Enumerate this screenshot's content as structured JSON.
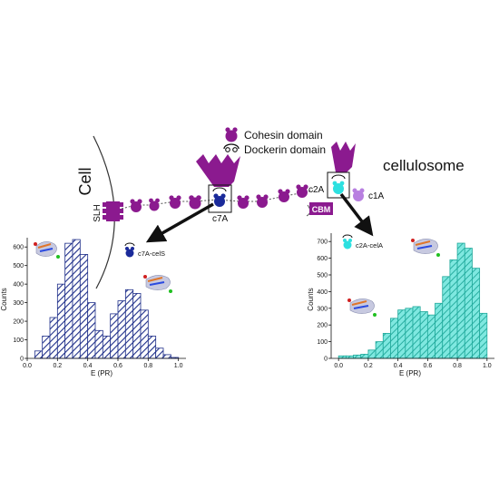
{
  "legend": {
    "cohesin_label": "Cohesin domain",
    "dockerin_label": "Dockerin domain"
  },
  "labels": {
    "cell": "Cell",
    "slh": "SLH",
    "cellulosome": "cellulosome",
    "c7a": "c7A",
    "c2a": "c2A",
    "c1a": "c1A",
    "cbm": "CBM"
  },
  "colors": {
    "scaffold_purple": "#8b1a8f",
    "c1a_lavender": "#b87fe0",
    "c7a_navy": "#1a2a9a",
    "c2a_cyan": "#2de0e0",
    "left_hatch": "#1f2f8a",
    "right_hatch": "#1fa89a",
    "right_fill": "#7fe8e0"
  },
  "icons": {
    "protein_structure": "protein-ribbon-icon",
    "cohesin": "cohesin-icon",
    "dockerin": "dockerin-icon",
    "arrow": "black-arrow-icon"
  },
  "chart_data": [
    {
      "type": "bar",
      "name_label": "c7A-celS",
      "ylabel": "Counts",
      "xlabel": "E (PR)",
      "x_ticks": [
        "0.0",
        "0.2",
        "0.4",
        "0.6",
        "0.8",
        "1.0"
      ],
      "y_ticks": [
        "0",
        "100",
        "200",
        "300",
        "400",
        "500",
        "600"
      ],
      "xlim": [
        0.0,
        1.05
      ],
      "ylim": [
        0,
        650
      ],
      "bin_width": 0.05,
      "bin_starts": [
        0.05,
        0.1,
        0.15,
        0.2,
        0.25,
        0.3,
        0.35,
        0.4,
        0.45,
        0.5,
        0.55,
        0.6,
        0.65,
        0.7,
        0.75,
        0.8,
        0.85,
        0.9,
        0.95
      ],
      "values": [
        40,
        120,
        220,
        400,
        620,
        640,
        560,
        300,
        150,
        120,
        240,
        310,
        370,
        350,
        260,
        120,
        55,
        20,
        5
      ],
      "hatch_color": "#1f2f8a"
    },
    {
      "type": "bar",
      "name_label": "c2A-celA",
      "ylabel": "Counts",
      "xlabel": "E (PR)",
      "x_ticks": [
        "0.0",
        "0.2",
        "0.4",
        "0.6",
        "0.8",
        "1.0"
      ],
      "y_ticks": [
        "0",
        "100",
        "200",
        "300",
        "400",
        "500",
        "600",
        "700"
      ],
      "xlim": [
        -0.05,
        1.05
      ],
      "ylim": [
        0,
        750
      ],
      "bin_width": 0.05,
      "bin_starts": [
        0.0,
        0.05,
        0.1,
        0.15,
        0.2,
        0.25,
        0.3,
        0.35,
        0.4,
        0.45,
        0.5,
        0.55,
        0.6,
        0.65,
        0.7,
        0.75,
        0.8,
        0.85,
        0.9,
        0.95
      ],
      "values": [
        15,
        15,
        20,
        25,
        50,
        100,
        150,
        240,
        290,
        300,
        310,
        280,
        260,
        330,
        490,
        590,
        690,
        660,
        540,
        270
      ],
      "hatch_color": "#1fa89a"
    }
  ]
}
